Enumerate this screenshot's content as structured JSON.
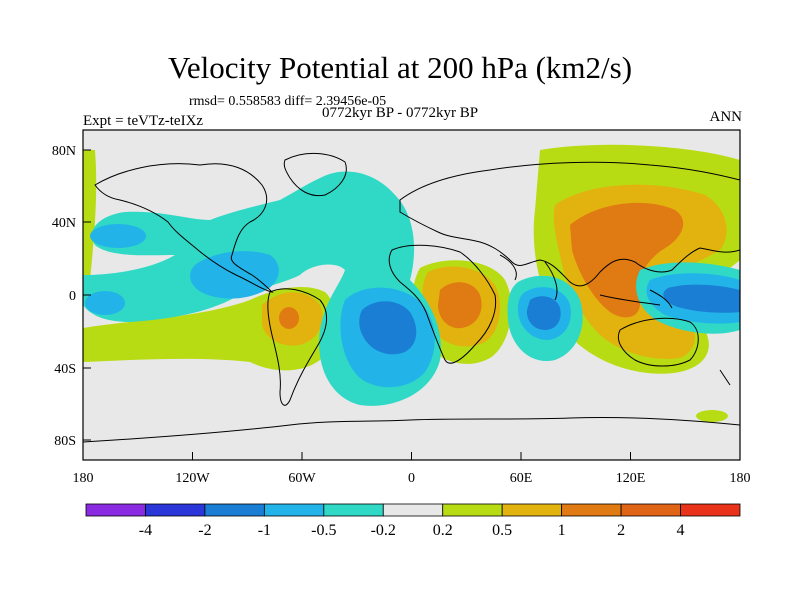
{
  "title": "Velocity Potential at 200 hPa (km2/s)",
  "stats_line": "rmsd= 0.558583 diff= 2.39456e-05",
  "experiment": "Expt = teVTz-teIXz",
  "period": "0772kyr BP - 0772kyr BP",
  "season": "ANN",
  "y_axis_labels": [
    "80N",
    "40N",
    "0",
    "40S",
    "80S"
  ],
  "x_axis_labels": [
    "180",
    "120W",
    "60W",
    "0",
    "60E",
    "120E",
    "180"
  ],
  "colorbar": {
    "labels": [
      "-4",
      "-2",
      "-1",
      "-0.5",
      "-0.2",
      "0.2",
      "0.5",
      "1",
      "2",
      "4"
    ],
    "colors": [
      "#8a2be2",
      "#2b36d9",
      "#1a7fd4",
      "#22b4e8",
      "#2fd9c6",
      "#e8e8e8",
      "#b8dc14",
      "#e2b30e",
      "#e07a12",
      "#e8331a"
    ]
  },
  "colors": {
    "background": "#e8e8e8",
    "coast": "#000000"
  }
}
